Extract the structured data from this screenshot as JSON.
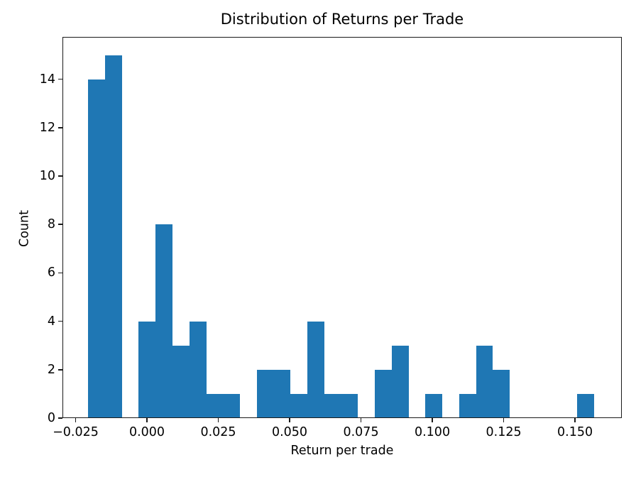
{
  "chart_data": {
    "type": "bar",
    "subtype": "histogram",
    "title": "Distribution of Returns per Trade",
    "xlabel": "Return per trade",
    "ylabel": "Count",
    "bar_color": "#1f77b4",
    "axis_color": "#1a1a1a",
    "background_color": "#ffffff",
    "grid": false,
    "legend": null,
    "bins": 30,
    "bin_start": -0.0206,
    "bin_width": 0.00591,
    "counts": [
      14,
      15,
      0,
      4,
      8,
      3,
      4,
      1,
      1,
      0,
      2,
      2,
      1,
      4,
      1,
      1,
      0,
      2,
      3,
      0,
      1,
      0,
      1,
      3,
      2,
      0,
      0,
      0,
      0,
      1
    ],
    "xlim": [
      -0.0296,
      0.1664
    ],
    "ylim": [
      0,
      15.75
    ],
    "xticks": [
      -0.025,
      0.0,
      0.025,
      0.05,
      0.075,
      0.1,
      0.125,
      0.15
    ],
    "xtick_labels": [
      "−0.025",
      "0.000",
      "0.025",
      "0.050",
      "0.075",
      "0.100",
      "0.125",
      "0.150"
    ],
    "yticks": [
      0,
      2,
      4,
      6,
      8,
      10,
      12,
      14
    ],
    "ytick_labels": [
      "0",
      "2",
      "4",
      "6",
      "8",
      "10",
      "12",
      "14"
    ]
  }
}
